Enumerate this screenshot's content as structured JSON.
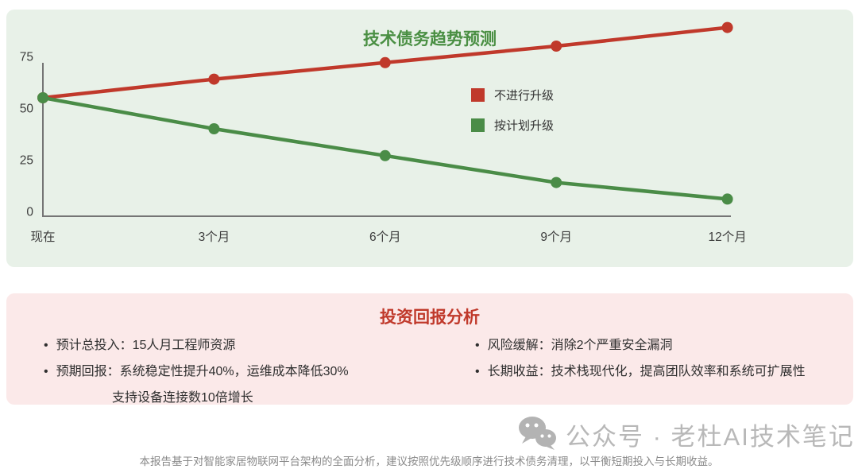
{
  "chart_data": {
    "type": "line",
    "title": "技术债务趋势预测",
    "categories": [
      "现在",
      "3个月",
      "6个月",
      "9个月",
      "12个月"
    ],
    "series": [
      {
        "name": "不进行升级",
        "color": "#c0392b",
        "values": [
          55,
          64,
          72,
          80,
          89
        ]
      },
      {
        "name": "按计划升级",
        "color": "#4a8c47",
        "values": [
          55,
          40,
          27,
          14,
          6
        ]
      }
    ],
    "yticks": [
      0,
      25,
      50,
      75
    ],
    "ylim": [
      0,
      95
    ],
    "xlabel": "",
    "ylabel": "",
    "grid": false,
    "legend_position": "center-right"
  },
  "roi": {
    "title": "投资回报分析",
    "left_items": [
      {
        "text": "预计总投入：15人月工程师资源"
      },
      {
        "text": "预期回报：系统稳定性提升40%，运维成本降低30%"
      }
    ],
    "left_continuation": "支持设备连接数10倍增长",
    "right_items": [
      {
        "text": "风险缓解：消除2个严重安全漏洞"
      },
      {
        "text": "长期收益：技术栈现代化，提高团队效率和系统可扩展性"
      }
    ]
  },
  "watermark": {
    "icon": "wechat-icon",
    "text": "公众号 · 老杜AI技术笔记"
  },
  "footer": {
    "text": "本报告基于对智能家居物联网平台架构的全面分析，建议按照优先级顺序进行技术债务清理，以平衡短期投入与长期收益。"
  },
  "colors": {
    "chart_card_bg": "#e8f1e8",
    "roi_card_bg": "#fbe9e9",
    "no_upgrade_red": "#c0392b",
    "planned_green": "#4a8c47",
    "chart_title_green": "#4a8f43",
    "roi_title_red": "#c0392b",
    "axis_gray": "#757575",
    "text_dark": "#333333",
    "watermark_gray": "#b8b8b8",
    "footer_gray": "#8a8a8a"
  }
}
